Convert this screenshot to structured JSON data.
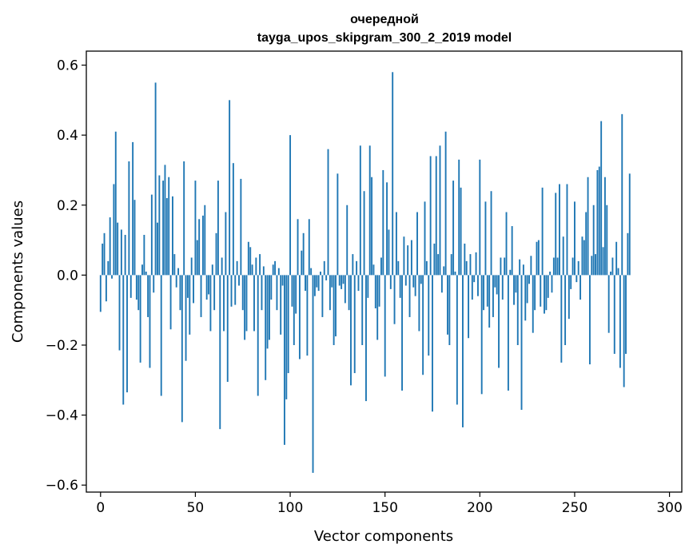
{
  "chart_data": {
    "type": "bar",
    "title_lines": [
      "очередной",
      "tayga_upos_skipgram_300_2_2019 model"
    ],
    "xlabel": "Vector components",
    "ylabel": "Components values",
    "xlim": [
      -7.5,
      306.5
    ],
    "ylim": [
      -0.62,
      0.64
    ],
    "xticks": [
      0,
      50,
      100,
      150,
      200,
      250,
      300
    ],
    "xtick_labels": [
      "0",
      "50",
      "100",
      "150",
      "200",
      "250",
      "300"
    ],
    "yticks": [
      -0.6,
      -0.4,
      -0.2,
      0.0,
      0.2,
      0.4,
      0.6
    ],
    "ytick_labels": [
      "−0.6",
      "−0.4",
      "−0.2",
      "0.0",
      "0.2",
      "0.4",
      "0.6"
    ],
    "grid": false,
    "bar_color": "#1f77b4",
    "x_start": 0,
    "values": [
      -0.105,
      0.09,
      0.12,
      -0.075,
      0.04,
      0.165,
      -0.01,
      0.26,
      0.41,
      0.15,
      -0.215,
      0.13,
      -0.37,
      0.115,
      -0.335,
      0.325,
      -0.065,
      0.38,
      0.215,
      -0.07,
      -0.1,
      -0.25,
      0.03,
      0.115,
      0.01,
      -0.12,
      -0.265,
      0.23,
      -0.05,
      0.55,
      0.15,
      0.285,
      -0.345,
      0.27,
      0.315,
      0.22,
      0.28,
      -0.155,
      0.225,
      0.06,
      -0.035,
      0.02,
      -0.1,
      -0.42,
      0.325,
      -0.245,
      -0.065,
      -0.17,
      0.05,
      -0.08,
      0.27,
      0.1,
      0.16,
      -0.12,
      0.17,
      0.2,
      -0.07,
      -0.055,
      -0.16,
      0.03,
      -0.1,
      0.12,
      0.27,
      -0.44,
      0.05,
      -0.16,
      0.18,
      -0.305,
      0.5,
      -0.09,
      0.32,
      -0.085,
      0.04,
      -0.03,
      0.275,
      -0.1,
      -0.185,
      -0.16,
      0.095,
      0.08,
      0.03,
      -0.16,
      0.05,
      -0.345,
      0.06,
      -0.1,
      0.025,
      -0.3,
      -0.21,
      -0.185,
      -0.07,
      0.03,
      0.04,
      -0.1,
      0.02,
      -0.17,
      -0.03,
      -0.485,
      -0.355,
      -0.28,
      0.4,
      -0.09,
      -0.2,
      -0.11,
      0.16,
      -0.24,
      0.07,
      0.12,
      -0.045,
      -0.23,
      0.16,
      0.02,
      -0.565,
      -0.06,
      -0.035,
      -0.045,
      0.01,
      -0.12,
      0.04,
      -0.015,
      0.36,
      -0.1,
      -0.035,
      -0.2,
      -0.175,
      0.29,
      -0.03,
      -0.04,
      -0.025,
      -0.08,
      0.2,
      -0.1,
      -0.315,
      0.06,
      -0.28,
      0.04,
      -0.045,
      0.37,
      -0.2,
      0.24,
      -0.36,
      -0.065,
      0.37,
      0.28,
      0.03,
      -0.095,
      -0.185,
      -0.09,
      0.05,
      0.3,
      -0.29,
      0.265,
      0.13,
      -0.04,
      0.58,
      -0.14,
      0.18,
      0.04,
      -0.065,
      -0.33,
      0.11,
      -0.03,
      0.085,
      -0.12,
      0.1,
      -0.035,
      -0.06,
      0.18,
      -0.16,
      -0.025,
      -0.285,
      0.21,
      0.04,
      -0.23,
      0.34,
      -0.39,
      0.09,
      0.34,
      0.06,
      0.37,
      -0.05,
      0.025,
      0.41,
      -0.17,
      -0.2,
      0.06,
      0.27,
      0.01,
      -0.37,
      0.33,
      0.25,
      -0.435,
      0.09,
      0.04,
      -0.18,
      0.06,
      -0.07,
      -0.02,
      0.065,
      -0.06,
      0.33,
      -0.34,
      -0.1,
      0.21,
      -0.09,
      -0.15,
      0.24,
      -0.12,
      -0.035,
      -0.055,
      -0.265,
      0.05,
      -0.07,
      0.05,
      0.18,
      -0.33,
      0.015,
      0.14,
      -0.085,
      -0.05,
      -0.2,
      0.045,
      -0.385,
      0.03,
      -0.13,
      -0.08,
      -0.025,
      0.055,
      -0.165,
      -0.1,
      0.095,
      0.1,
      -0.09,
      0.25,
      -0.11,
      -0.1,
      -0.065,
      0.01,
      -0.05,
      0.05,
      0.235,
      0.05,
      0.26,
      -0.25,
      0.11,
      -0.2,
      0.26,
      -0.125,
      -0.04,
      0.05,
      0.21,
      -0.02,
      0.04,
      -0.07,
      0.11,
      0.1,
      0.18,
      0.28,
      -0.255,
      0.055,
      0.2,
      0.06,
      0.3,
      0.31,
      0.44,
      0.08,
      0.28,
      0.2,
      -0.165,
      0.01,
      0.05,
      -0.225,
      0.095,
      0.02,
      -0.265,
      0.46,
      -0.32,
      -0.225,
      0.12,
      0.29
    ]
  }
}
